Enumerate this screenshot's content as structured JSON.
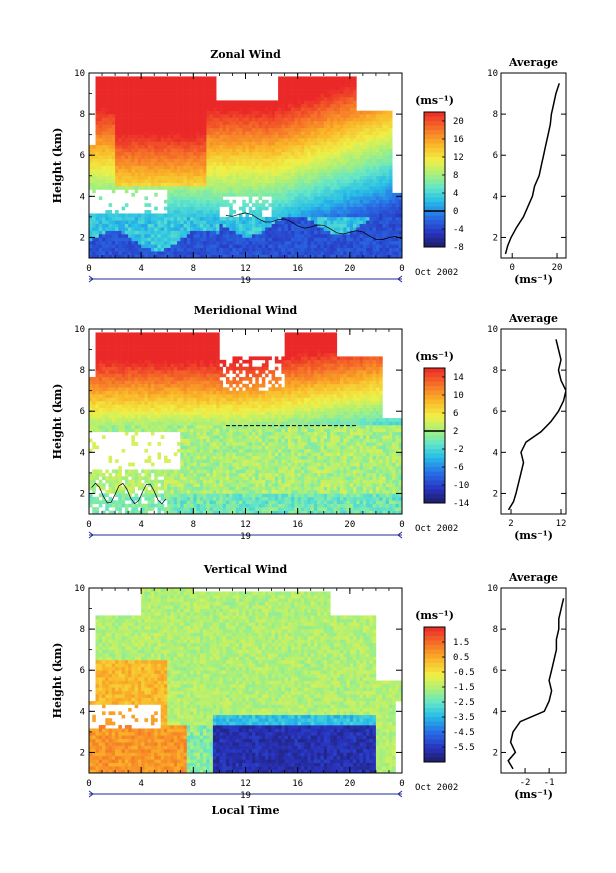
{
  "chart_data": [
    {
      "type": "heatmap",
      "title": "Zonal Wind",
      "xlabel": "",
      "ylabel": "Height (km)",
      "xlim": [
        0,
        24
      ],
      "ylim": [
        1,
        10
      ],
      "xticks": [
        "0",
        "4",
        "8",
        "12",
        "16",
        "20",
        "0"
      ],
      "yticks": [
        "2",
        "4",
        "6",
        "8",
        "10"
      ],
      "date_left": "19",
      "date_right": "Oct 2002",
      "colorbar": {
        "unit": "(ms⁻¹)",
        "min": -8,
        "max": 22,
        "ticks": [
          "20",
          "16",
          "12",
          "8",
          "4",
          "0",
          "-4",
          "-8"
        ],
        "tick_values": [
          20,
          16,
          12,
          8,
          4,
          0,
          -4,
          -8
        ],
        "zero_line": 0
      },
      "profile": {
        "title": "Average",
        "xlabel": "(ms⁻¹)",
        "xticks": [
          "0",
          "20"
        ],
        "xtick_values": [
          0,
          20
        ],
        "yticks": [
          "2",
          "4",
          "6",
          "8",
          "10"
        ],
        "xlim": [
          -5,
          24
        ],
        "heights": [
          1.2,
          1.6,
          2.0,
          2.5,
          3.0,
          3.5,
          4.0,
          4.5,
          5.0,
          5.5,
          6.0,
          6.5,
          7.0,
          7.5,
          8.0,
          8.5,
          9.0,
          9.5
        ],
        "values": [
          -3,
          -2,
          -0.5,
          2,
          5,
          7,
          9,
          10,
          12,
          13,
          14,
          15,
          16,
          17,
          17.5,
          18.5,
          19.5,
          21
        ]
      }
    },
    {
      "type": "heatmap",
      "title": "Meridional Wind",
      "xlabel": "",
      "ylabel": "Height (km)",
      "xlim": [
        0,
        24
      ],
      "ylim": [
        1,
        10
      ],
      "xticks": [
        "0",
        "4",
        "8",
        "12",
        "16",
        "20",
        "0"
      ],
      "yticks": [
        "2",
        "4",
        "6",
        "8",
        "10"
      ],
      "date_left": "19",
      "date_right": "Oct 2002",
      "colorbar": {
        "unit": "(ms⁻¹)",
        "min": -14,
        "max": 16,
        "ticks": [
          "14",
          "10",
          "6",
          "2",
          "-2",
          "-6",
          "-10",
          "-14"
        ],
        "tick_values": [
          14,
          10,
          6,
          2,
          -2,
          -6,
          -10,
          -14
        ],
        "zero_line": 2
      },
      "profile": {
        "title": "Average",
        "xlabel": "(ms⁻¹)",
        "xticks": [
          "2",
          "12"
        ],
        "xtick_values": [
          2,
          12
        ],
        "yticks": [
          "2",
          "4",
          "6",
          "8",
          "10"
        ],
        "xlim": [
          0,
          13
        ],
        "heights": [
          1.2,
          1.6,
          2.0,
          2.5,
          3.0,
          3.5,
          4.0,
          4.5,
          5.0,
          5.5,
          6.0,
          6.5,
          7.0,
          7.5,
          8.0,
          8.5,
          9.0,
          9.5
        ],
        "values": [
          1.5,
          2.5,
          3.0,
          3.5,
          4.0,
          4.5,
          4.0,
          5.0,
          8.0,
          10.0,
          11.5,
          12.5,
          13.0,
          12.0,
          11.5,
          12.0,
          11.5,
          11.0
        ]
      }
    },
    {
      "type": "heatmap",
      "title": "Vertical Wind",
      "xlabel": "Local Time",
      "ylabel": "Height (km)",
      "xlim": [
        0,
        24
      ],
      "ylim": [
        1,
        10
      ],
      "xticks": [
        "0",
        "4",
        "8",
        "12",
        "16",
        "20",
        "0"
      ],
      "yticks": [
        "2",
        "4",
        "6",
        "8",
        "10"
      ],
      "date_left": "19",
      "date_right": "Oct 2002",
      "colorbar": {
        "unit": "(ms⁻¹)",
        "min": -6.5,
        "max": 2.5,
        "ticks": [
          "1.5",
          "0.5",
          "-0.5",
          "-1.5",
          "-2.5",
          "-3.5",
          "-4.5",
          "-5.5"
        ],
        "tick_values": [
          1.5,
          0.5,
          -0.5,
          -1.5,
          -2.5,
          -3.5,
          -4.5,
          -5.5
        ],
        "zero_line": null
      },
      "profile": {
        "title": "Average",
        "xlabel": "(ms⁻¹)",
        "xticks": [
          "-2",
          "-1"
        ],
        "xtick_values": [
          -2,
          -1
        ],
        "yticks": [
          "2",
          "4",
          "6",
          "8",
          "10"
        ],
        "xlim": [
          -3,
          -0.3
        ],
        "heights": [
          1.2,
          1.6,
          2.0,
          2.5,
          3.0,
          3.5,
          4.0,
          4.5,
          5.0,
          5.5,
          6.0,
          6.5,
          7.0,
          7.5,
          8.0,
          8.5,
          9.0,
          9.5
        ],
        "values": [
          -2.5,
          -2.7,
          -2.4,
          -2.6,
          -2.5,
          -2.2,
          -1.2,
          -1.0,
          -0.9,
          -1.0,
          -0.9,
          -0.8,
          -0.7,
          -0.7,
          -0.6,
          -0.6,
          -0.5,
          -0.4
        ]
      }
    }
  ]
}
